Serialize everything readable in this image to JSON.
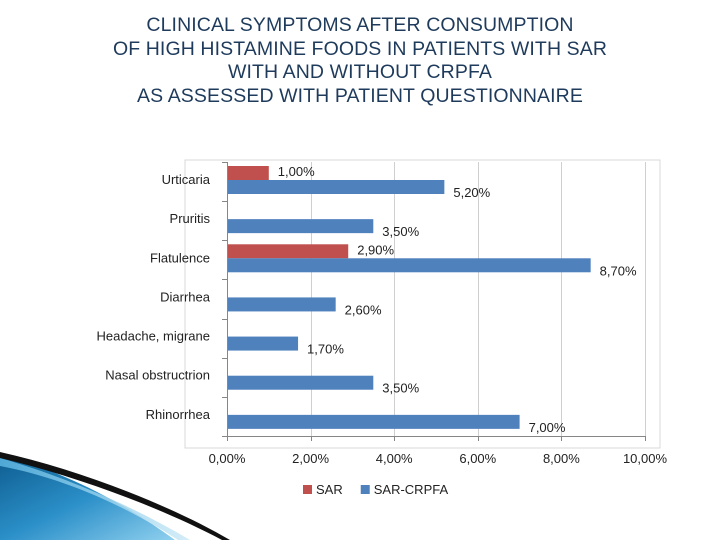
{
  "slide": {
    "title_lines": [
      "CLINICAL SYMPTOMS AFTER CONSUMPTION",
      "OF HIGH HISTAMINE FOODS IN PATIENTS WITH SAR",
      "WITH AND WITHOUT CRPFA",
      "AS ASSESSED WITH PATIENT QUESTIONNAIRE"
    ]
  },
  "colors": {
    "sar": "#c0504d",
    "sar_crpfa": "#4f81bd",
    "accent": "#1f6fa8"
  },
  "chart_data": {
    "type": "bar",
    "orientation": "horizontal",
    "title": "CLINICAL SYMPTOMS AFTER CONSUMPTION OF HIGH HISTAMINE FOODS IN PATIENTS WITH SAR WITH AND WITHOUT CRPFA AS ASSESSED WITH PATIENT QUESTIONNAIRE",
    "categories": [
      "Urticaria",
      "Pruritis",
      "Flatulence",
      "Diarrhea",
      "Headache, migrane",
      "Nasal obstructrion",
      "Rhinorrhea"
    ],
    "series": [
      {
        "name": "SAR",
        "values": [
          1.0,
          null,
          2.9,
          null,
          null,
          null,
          null
        ],
        "labels": [
          "1,00%",
          null,
          "2,90%",
          null,
          null,
          null,
          null
        ]
      },
      {
        "name": "SAR-CRPFA",
        "values": [
          5.2,
          3.5,
          8.7,
          2.6,
          1.7,
          3.5,
          7.0
        ],
        "labels": [
          "5,20%",
          "3,50%",
          "8,70%",
          "2,60%",
          "1,70%",
          "3,50%",
          "7,00%"
        ]
      }
    ],
    "xlim": [
      0,
      10
    ],
    "x_ticks": [
      0,
      2,
      4,
      6,
      8,
      10
    ],
    "x_tick_labels": [
      "0,00%",
      "2,00%",
      "4,00%",
      "6,00%",
      "8,00%",
      "10,00%"
    ],
    "grid": true,
    "legend_position": "bottom",
    "legend": [
      "SAR",
      "SAR-CRPFA"
    ]
  }
}
